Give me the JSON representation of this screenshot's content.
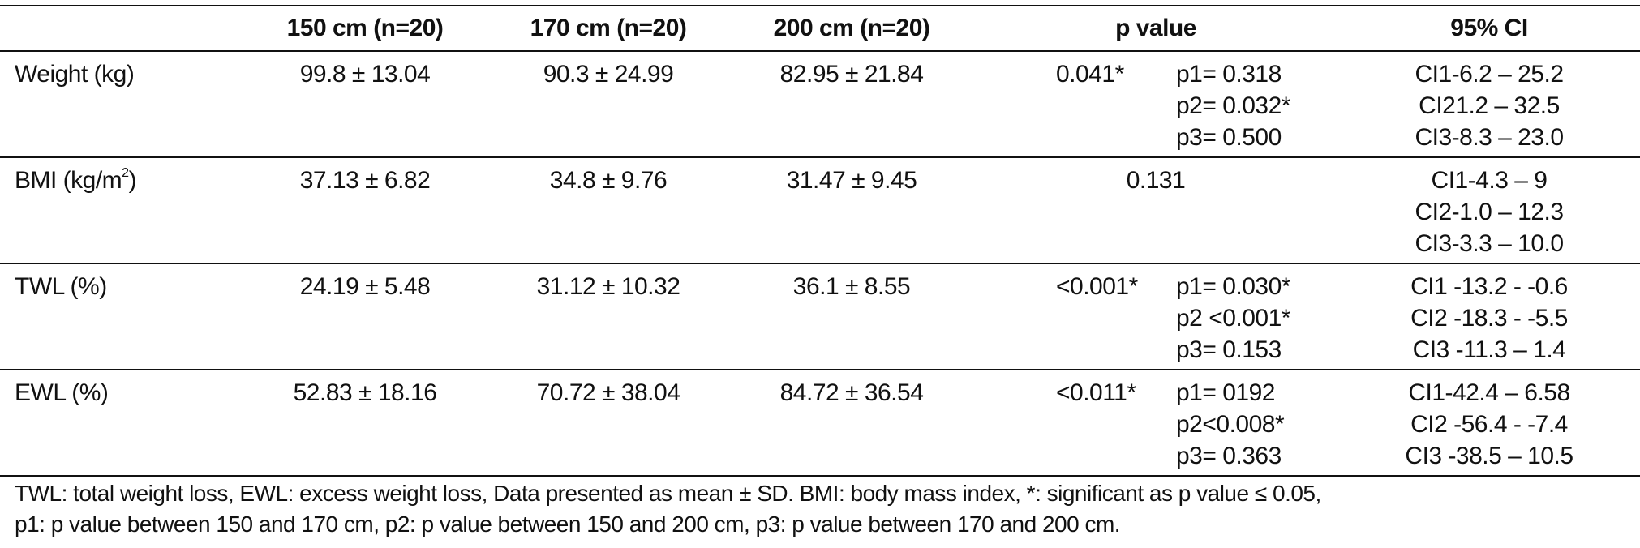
{
  "table": {
    "headers": {
      "label": "",
      "col1": "150 cm (n=20)",
      "col2": "170 cm (n=20)",
      "col3": "200 cm (n=20)",
      "pvalue": "p value",
      "ci": "95% CI"
    },
    "rows": [
      {
        "label": "Weight (kg)",
        "c150": "99.8 ± 13.04",
        "c170": "90.3 ± 24.99",
        "c200": "82.95 ± 21.84",
        "p": "0.041*",
        "p_sub": [
          "p1= 0.318",
          "p2= 0.032*",
          "p3= 0.500"
        ],
        "ci": [
          "CI1-6.2 – 25.2",
          "CI21.2 – 32.5",
          "CI3-8.3 – 23.0"
        ]
      },
      {
        "label_main": "BMI (kg/m",
        "label_sup": "2",
        "label_end": ")",
        "c150": "37.13 ± 6.82",
        "c170": "34.8 ± 9.76",
        "c200": "31.47 ± 9.45",
        "p": "0.131",
        "ci": [
          "CI1-4.3 – 9",
          "CI2-1.0 – 12.3",
          "CI3-3.3 – 10.0"
        ]
      },
      {
        "label": "TWL (%)",
        "c150": "24.19 ± 5.48",
        "c170": "31.12 ± 10.32",
        "c200": "36.1 ± 8.55",
        "p": "<0.001*",
        "p_sub": [
          "p1= 0.030*",
          "p2 <0.001*",
          "p3= 0.153"
        ],
        "ci": [
          "CI1 -13.2 - -0.6",
          "CI2 -18.3 - -5.5",
          "CI3 -11.3 – 1.4"
        ]
      },
      {
        "label": "EWL (%)",
        "c150": "52.83 ± 18.16",
        "c170": "70.72 ± 38.04",
        "c200": "84.72 ± 36.54",
        "p": "<0.011*",
        "p_sub": [
          "p1= 0192",
          "p2<0.008*",
          "p3= 0.363"
        ],
        "ci": [
          "CI1-42.4 – 6.58",
          "CI2 -56.4 - -7.4",
          "CI3 -38.5 – 10.5"
        ]
      }
    ]
  },
  "footnote": {
    "line1": "TWL: total weight loss, EWL: excess weight loss, Data presented as mean ± SD. BMI: body mass index, *: significant as p value ≤ 0.05,",
    "line2": "p1: p value between 150 and 170 cm, p2: p value between 150 and 200 cm, p3: p value between 170 and 200 cm."
  }
}
